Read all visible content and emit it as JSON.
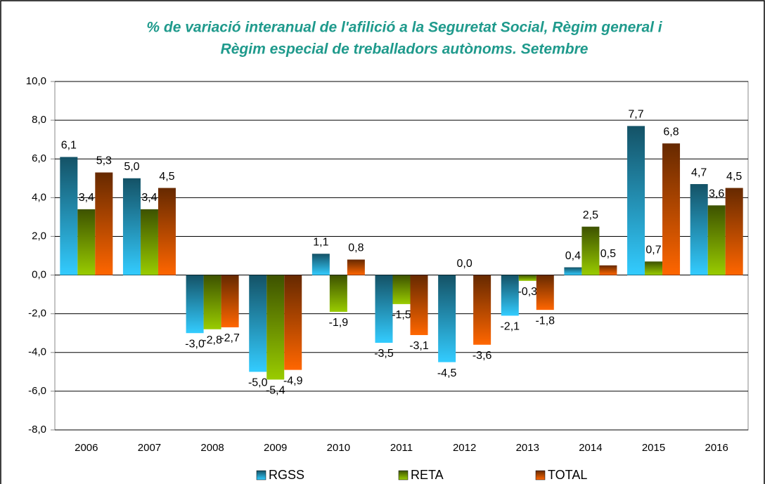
{
  "chart_data": {
    "type": "bar",
    "title": [
      "% de variació interanual de l'afilició a la Seguretat Social, Règim general i",
      "Règim especial de treballadors autònoms. Setembre"
    ],
    "categories": [
      "2006",
      "2007",
      "2008",
      "2009",
      "2010",
      "2011",
      "2012",
      "2013",
      "2014",
      "2015",
      "2016"
    ],
    "series": [
      {
        "name": "RGSS",
        "color": "#33ccff",
        "values": [
          6.1,
          5.0,
          -3.0,
          -5.0,
          1.1,
          -3.5,
          -4.5,
          -2.1,
          0.4,
          7.7,
          4.7
        ],
        "value_labels": [
          "6,1",
          "5,0",
          "-3,0",
          "-5,0",
          "1,1",
          "-3,5",
          "-4,5",
          "-2,1",
          "0,4",
          "7,7",
          "4,7"
        ]
      },
      {
        "name": "RETA",
        "color": "#99cc00",
        "values": [
          3.4,
          3.4,
          -2.8,
          -5.4,
          -1.9,
          -1.5,
          0.0,
          -0.3,
          2.5,
          0.7,
          3.6
        ],
        "value_labels": [
          "3,4",
          "3,4",
          "-2,8",
          "-5,4",
          "-1,9",
          "-1,5",
          "0,0",
          "-0,3",
          "2,5",
          "0,7",
          "3,6"
        ]
      },
      {
        "name": "TOTAL",
        "color": "#ff6600",
        "values": [
          5.3,
          4.5,
          -2.7,
          -4.9,
          0.8,
          -3.1,
          -3.6,
          -1.8,
          0.5,
          6.8,
          4.5
        ],
        "value_labels": [
          "5,3",
          "4,5",
          "-2,7",
          "-4,9",
          "0,8",
          "-3,1",
          "-3,6",
          "-1,8",
          "0,5",
          "6,8",
          "4,5"
        ]
      }
    ],
    "ylim": [
      -8,
      10
    ],
    "yticks": [
      {
        "value": -8,
        "label": "-8,0"
      },
      {
        "value": -6,
        "label": "-6,0"
      },
      {
        "value": -4,
        "label": "-4,0"
      },
      {
        "value": -2,
        "label": "-2,0"
      },
      {
        "value": 0,
        "label": "0,0"
      },
      {
        "value": 2,
        "label": "2,0"
      },
      {
        "value": 4,
        "label": "4,0"
      },
      {
        "value": 6,
        "label": "6,0"
      },
      {
        "value": 8,
        "label": "8,0"
      },
      {
        "value": 10,
        "label": "10,0"
      }
    ],
    "grid": true,
    "legend": "bottom"
  }
}
